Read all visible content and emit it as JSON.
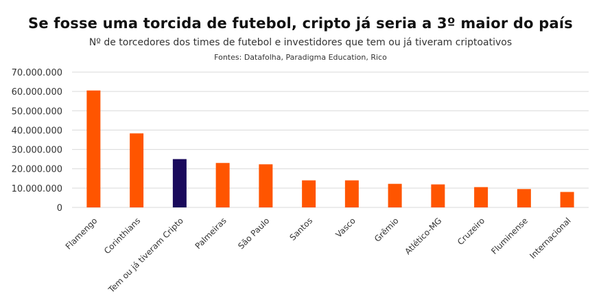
{
  "chart_data": {
    "type": "bar",
    "title": "Se fosse uma torcida de futebol, cripto já seria a 3º maior do país",
    "subtitle": "Nº de torcedores dos times de futebol e investidores que tem ou já tiveram criptoativos",
    "source": "Fontes: Datafolha, Paradigma Education, Rico",
    "categories": [
      "Flamengo",
      "Corinthians",
      "Tem ou já tiveram Cripto",
      "Palmeiras",
      "São Paulo",
      "Santos",
      "Vasco",
      "Grêmio",
      "Atlético-MG",
      "Cruzeiro",
      "Fluminense",
      "Internacional"
    ],
    "values": [
      60500000,
      38300000,
      25000000,
      23000000,
      22300000,
      14000000,
      14000000,
      12200000,
      11900000,
      10500000,
      9500000,
      8000000
    ],
    "highlight_index": 2,
    "colors": {
      "default": "#FF5500",
      "highlight": "#1A0A5C",
      "grid": "#D9D9D9"
    },
    "ylim": [
      0,
      70000000
    ],
    "yticks": [
      0,
      10000000,
      20000000,
      30000000,
      40000000,
      50000000,
      60000000,
      70000000
    ],
    "ytick_labels": [
      "0",
      "10.000.000",
      "20.000.000",
      "30.000.000",
      "40.000.000",
      "50.000.000",
      "60.000.000",
      "70.000.000"
    ],
    "xlabel": "",
    "ylabel": "",
    "grid": true,
    "legend": "none"
  }
}
